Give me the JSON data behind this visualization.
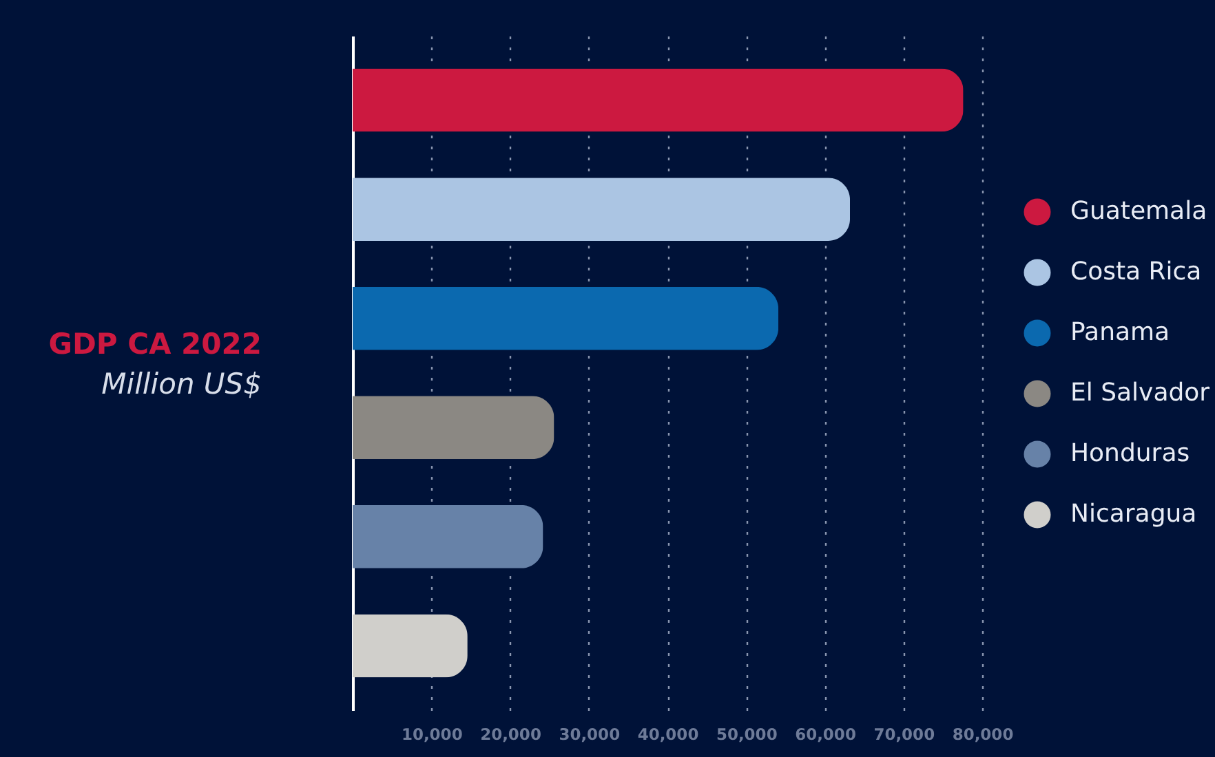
{
  "chart_data": {
    "type": "bar",
    "orientation": "horizontal",
    "title": "GDP CA 2022",
    "subtitle": "Million US$",
    "categories": [
      null,
      null,
      null,
      null,
      null,
      null
    ],
    "series": [
      {
        "name": "Guatemala",
        "color": "#cc1940",
        "values": [
          77600,
          null,
          null,
          null,
          null,
          null
        ]
      },
      {
        "name": "Costa Rica",
        "color": "#abc5e3",
        "values": [
          null,
          63200,
          null,
          null,
          null,
          null
        ]
      },
      {
        "name": "Panama",
        "color": "#0b69af",
        "values": [
          null,
          null,
          54100,
          null,
          null,
          null
        ]
      },
      {
        "name": "El Salvador",
        "color": "#8b8883",
        "values": [
          null,
          null,
          null,
          25600,
          null,
          null
        ]
      },
      {
        "name": "Honduras",
        "color": "#6782a8",
        "values": [
          null,
          null,
          null,
          null,
          24200,
          null
        ]
      },
      {
        "name": "Nicaragua",
        "color": "#d0cfcb",
        "values": [
          null,
          null,
          null,
          null,
          null,
          14600
        ]
      }
    ],
    "xlim": [
      0,
      80000
    ],
    "xticks": [
      {
        "value": 10000,
        "label": "10,000"
      },
      {
        "value": 20000,
        "label": "20,000"
      },
      {
        "value": 30000,
        "label": "30,000"
      },
      {
        "value": 40000,
        "label": "40,000"
      },
      {
        "value": 50000,
        "label": "50,000"
      },
      {
        "value": 60000,
        "label": "60,000"
      },
      {
        "value": 70000,
        "label": "70,000"
      },
      {
        "value": 80000,
        "label": "80,000"
      }
    ],
    "grid": "x",
    "legend": "right",
    "tick_labels": "x"
  }
}
